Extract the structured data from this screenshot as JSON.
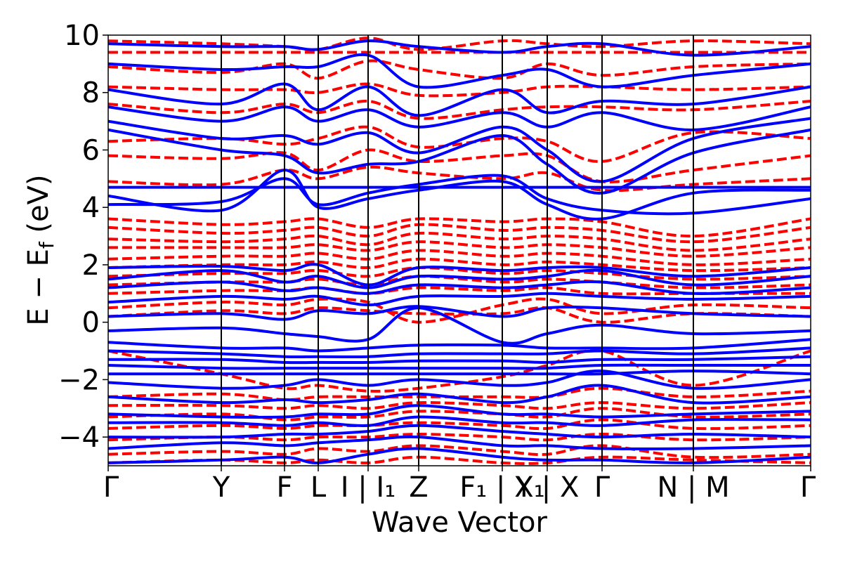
{
  "chart_data": {
    "type": "line",
    "title": "",
    "xlabel": "Wave Vector",
    "ylabel": "E − E_f (eV)",
    "ylabel_parts": {
      "main": "E − E",
      "sub": "f",
      "unit": "(eV)"
    },
    "ylim": [
      -5,
      10
    ],
    "yticks": [
      {
        "value": 10,
        "label": "10"
      },
      {
        "value": 8,
        "label": "8"
      },
      {
        "value": 6,
        "label": "6"
      },
      {
        "value": 4,
        "label": "4"
      },
      {
        "value": 2,
        "label": "2"
      },
      {
        "value": 0,
        "label": "0"
      },
      {
        "value": -2,
        "label": "−2"
      },
      {
        "value": -4,
        "label": "−4"
      }
    ],
    "xlim": [
      0,
      1
    ],
    "kpoints": [
      {
        "x": 0.0,
        "label": "Γ"
      },
      {
        "x": 0.161,
        "label": "Y"
      },
      {
        "x": 0.251,
        "label": "F"
      },
      {
        "x": 0.299,
        "label": "L"
      },
      {
        "x": 0.37,
        "label": "I | I₁"
      },
      {
        "x": 0.442,
        "label": "Z"
      },
      {
        "x": 0.561,
        "label": "F₁ | X₁"
      },
      {
        "x": 0.625,
        "label": "Y | X"
      },
      {
        "x": 0.703,
        "label": "Γ"
      },
      {
        "x": 0.833,
        "label": "N | M"
      },
      {
        "x": 1.0,
        "label": "Γ"
      }
    ],
    "colors": {
      "spin_up": "#0000ff",
      "spin_down": "#ff0000"
    },
    "grid": false,
    "legend": "none",
    "series": [
      {
        "style": "solid",
        "color": "#0000ff",
        "bands": [
          [
            4.7,
            4.7,
            4.7,
            4.7,
            4.7,
            4.7,
            4.7,
            4.7,
            4.7,
            4.7,
            4.7
          ],
          [
            4.4,
            3.9,
            5.3,
            4.0,
            4.3,
            4.6,
            4.9,
            4.1,
            3.6,
            4.5,
            4.6
          ],
          [
            4.1,
            4.2,
            5.0,
            4.1,
            4.5,
            4.8,
            5.1,
            4.3,
            3.9,
            3.8,
            4.3
          ],
          [
            6.7,
            6.0,
            5.8,
            5.2,
            5.5,
            5.6,
            6.5,
            5.5,
            4.5,
            5.9,
            6.7
          ],
          [
            7.0,
            6.4,
            6.5,
            6.2,
            6.6,
            5.9,
            6.8,
            6.0,
            4.9,
            6.4,
            7.1
          ],
          [
            7.5,
            7.0,
            7.5,
            7.0,
            7.4,
            6.8,
            7.3,
            6.8,
            7.3,
            6.7,
            7.5
          ],
          [
            8.1,
            7.6,
            8.3,
            7.4,
            8.2,
            7.2,
            8.1,
            7.3,
            7.7,
            7.6,
            8.2
          ],
          [
            9.0,
            8.8,
            8.9,
            8.9,
            9.3,
            8.2,
            8.6,
            8.8,
            8.2,
            8.6,
            9.0
          ],
          [
            9.7,
            9.6,
            9.6,
            9.5,
            9.8,
            9.6,
            9.4,
            9.6,
            9.7,
            9.3,
            9.6
          ],
          [
            1.9,
            1.95,
            1.8,
            2.0,
            1.3,
            1.9,
            1.8,
            1.9,
            1.9,
            1.6,
            1.9
          ],
          [
            1.5,
            1.8,
            1.4,
            1.6,
            1.2,
            1.6,
            1.5,
            1.6,
            1.8,
            1.3,
            1.6
          ],
          [
            1.2,
            1.4,
            1.1,
            1.2,
            1.0,
            1.3,
            1.2,
            1.3,
            1.4,
            1.0,
            1.2
          ],
          [
            0.7,
            0.9,
            0.8,
            0.9,
            0.6,
            0.9,
            0.9,
            1.0,
            0.9,
            0.8,
            0.9
          ],
          [
            0.2,
            0.3,
            0.1,
            0.4,
            0.3,
            0.55,
            0.2,
            0.5,
            0.5,
            0.3,
            0.2
          ],
          [
            -0.3,
            -0.2,
            -0.4,
            -0.5,
            -0.6,
            0.5,
            -0.7,
            -0.4,
            -0.1,
            -0.4,
            -0.3
          ],
          [
            -0.7,
            -0.9,
            -0.9,
            -1.0,
            -0.9,
            -0.8,
            -0.8,
            -0.9,
            -0.9,
            -0.9,
            -0.6
          ],
          [
            -1.0,
            -1.1,
            -1.2,
            -1.2,
            -1.2,
            -1.1,
            -1.1,
            -1.1,
            -1.0,
            -1.1,
            -0.9
          ],
          [
            -1.3,
            -1.3,
            -1.4,
            -1.4,
            -1.4,
            -1.35,
            -1.35,
            -1.4,
            -1.3,
            -1.3,
            -1.2
          ],
          [
            -1.5,
            -1.6,
            -1.6,
            -1.6,
            -1.6,
            -1.6,
            -1.6,
            -1.6,
            -1.5,
            -1.5,
            -1.5
          ],
          [
            -1.8,
            -1.8,
            -1.8,
            -1.8,
            -1.8,
            -1.8,
            -1.8,
            -1.8,
            -1.8,
            -1.7,
            -1.8
          ],
          [
            -2.1,
            -2.3,
            -2.2,
            -2.0,
            -2.2,
            -2.0,
            -2.2,
            -2.1,
            -1.7,
            -2.3,
            -2.0
          ],
          [
            -2.6,
            -2.8,
            -2.7,
            -2.8,
            -2.7,
            -2.5,
            -2.8,
            -2.6,
            -2.2,
            -2.8,
            -2.6
          ],
          [
            -3.2,
            -3.3,
            -3.3,
            -3.2,
            -3.2,
            -2.9,
            -3.2,
            -3.2,
            -3.3,
            -3.2,
            -3.1
          ],
          [
            -3.5,
            -3.5,
            -3.6,
            -3.5,
            -3.6,
            -3.3,
            -3.5,
            -3.5,
            -3.6,
            -3.4,
            -3.4
          ],
          [
            -4.0,
            -4.0,
            -3.9,
            -3.9,
            -3.8,
            -3.6,
            -3.8,
            -3.9,
            -4.0,
            -3.9,
            -4.0
          ],
          [
            -4.4,
            -4.2,
            -4.3,
            -4.2,
            -4.1,
            -4.0,
            -4.3,
            -4.3,
            -4.4,
            -4.4,
            -4.3
          ],
          [
            -4.9,
            -4.8,
            -4.7,
            -4.9,
            -4.6,
            -4.4,
            -4.7,
            -4.8,
            -4.8,
            -4.9,
            -4.7
          ]
        ]
      },
      {
        "style": "dashed",
        "color": "#ff0000",
        "bands": [
          [
            9.4,
            9.4,
            9.4,
            9.4,
            9.4,
            9.4,
            9.4,
            9.4,
            9.4,
            9.4,
            9.4
          ],
          [
            9.8,
            9.7,
            9.6,
            9.5,
            9.9,
            9.5,
            9.8,
            9.7,
            9.6,
            9.8,
            9.7
          ],
          [
            8.9,
            8.7,
            9.0,
            8.5,
            9.1,
            8.8,
            8.5,
            9.0,
            8.6,
            8.9,
            9.0
          ],
          [
            8.2,
            8.1,
            8.1,
            8.0,
            8.3,
            7.9,
            8.0,
            8.2,
            8.2,
            8.1,
            8.2
          ],
          [
            7.6,
            7.3,
            7.6,
            7.3,
            7.7,
            7.1,
            7.4,
            7.5,
            7.5,
            7.4,
            7.7
          ],
          [
            6.3,
            6.4,
            6.2,
            6.4,
            6.8,
            6.1,
            6.4,
            6.3,
            5.6,
            6.6,
            6.4
          ],
          [
            5.8,
            5.7,
            5.9,
            5.3,
            6.0,
            5.6,
            5.8,
            5.8,
            4.9,
            5.3,
            5.8
          ],
          [
            4.9,
            4.8,
            5.3,
            5.0,
            5.4,
            5.2,
            5.0,
            5.2,
            4.6,
            4.8,
            5.0
          ],
          [
            3.6,
            3.4,
            3.5,
            3.6,
            3.3,
            3.6,
            3.5,
            3.6,
            3.5,
            3.0,
            3.6
          ],
          [
            3.3,
            3.1,
            3.2,
            3.3,
            3.0,
            3.4,
            3.2,
            3.3,
            3.2,
            2.8,
            3.3
          ],
          [
            2.9,
            2.8,
            2.9,
            3.0,
            2.7,
            3.1,
            2.9,
            3.0,
            2.9,
            2.5,
            2.9
          ],
          [
            2.6,
            2.6,
            2.6,
            2.7,
            2.5,
            2.8,
            2.6,
            2.7,
            2.6,
            2.3,
            2.6
          ],
          [
            2.2,
            2.3,
            2.3,
            2.4,
            2.2,
            2.5,
            2.3,
            2.4,
            2.3,
            2.0,
            2.2
          ],
          [
            1.9,
            2.0,
            2.0,
            2.1,
            1.9,
            2.2,
            2.0,
            2.1,
            2.0,
            1.8,
            1.9
          ],
          [
            1.6,
            1.7,
            1.7,
            1.8,
            1.6,
            1.9,
            1.7,
            1.8,
            1.7,
            1.5,
            1.6
          ],
          [
            1.3,
            1.4,
            1.4,
            1.5,
            1.3,
            1.6,
            1.4,
            1.5,
            1.4,
            1.2,
            1.3
          ],
          [
            1.0,
            1.1,
            1.1,
            1.2,
            1.0,
            1.2,
            1.1,
            1.2,
            1.0,
            1.0,
            1.0
          ],
          [
            0.5,
            0.7,
            0.6,
            0.8,
            0.7,
            0.0,
            0.6,
            0.8,
            0.3,
            0.6,
            0.5
          ],
          [
            0.2,
            0.4,
            0.3,
            0.5,
            0.4,
            0.3,
            0.3,
            0.5,
            0.0,
            0.3,
            0.2
          ],
          [
            -1.0,
            -1.8,
            -2.3,
            -2.2,
            -2.4,
            -2.3,
            -1.9,
            -1.5,
            -1.0,
            -2.2,
            -1.0
          ],
          [
            -2.6,
            -2.5,
            -2.7,
            -2.6,
            -2.6,
            -2.6,
            -2.6,
            -2.6,
            -2.3,
            -2.6,
            -2.4
          ],
          [
            -2.9,
            -2.9,
            -3.0,
            -2.9,
            -3.0,
            -2.8,
            -2.9,
            -3.0,
            -2.8,
            -3.0,
            -2.8
          ],
          [
            -3.3,
            -3.2,
            -3.4,
            -3.3,
            -3.3,
            -3.1,
            -3.2,
            -3.3,
            -3.0,
            -3.3,
            -3.2
          ],
          [
            -3.7,
            -3.6,
            -3.7,
            -3.6,
            -3.6,
            -3.5,
            -3.6,
            -3.7,
            -3.4,
            -3.7,
            -3.6
          ],
          [
            -4.1,
            -4.0,
            -4.1,
            -4.0,
            -4.0,
            -3.9,
            -4.0,
            -4.1,
            -3.9,
            -4.1,
            -4.0
          ],
          [
            -4.6,
            -4.5,
            -4.6,
            -4.4,
            -4.5,
            -4.3,
            -4.5,
            -4.6,
            -4.3,
            -4.7,
            -4.6
          ],
          [
            -4.9,
            -4.8,
            -4.9,
            -4.8,
            -4.9,
            -4.7,
            -4.9,
            -4.9,
            -4.7,
            -4.8,
            -4.9
          ]
        ]
      }
    ]
  }
}
